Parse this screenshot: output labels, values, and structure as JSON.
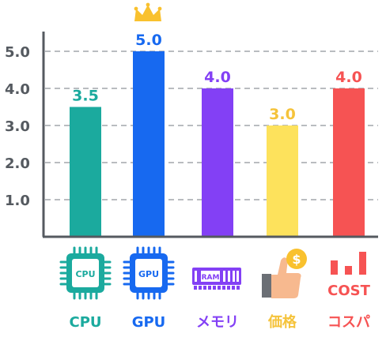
{
  "chart_data": {
    "type": "bar",
    "categories": [
      "CPU",
      "GPU",
      "メモリ",
      "価格",
      "コスパ"
    ],
    "values": [
      3.5,
      5.0,
      4.0,
      3.0,
      4.0
    ],
    "value_labels": [
      "3.5",
      "5.0",
      "4.0",
      "3.0",
      "4.0"
    ],
    "colors": [
      "#1baa9e",
      "#1769f0",
      "#8340f5",
      "#fde25c",
      "#f65353"
    ],
    "label_colors": [
      "#1baa9e",
      "#1769f0",
      "#8340f5",
      "#f5c33b",
      "#f65353"
    ],
    "yticks": [
      "1.0",
      "2.0",
      "3.0",
      "4.0",
      "5.0"
    ],
    "ylim": [
      0,
      5
    ],
    "grid": "dashed",
    "highlight": "crown-on-max",
    "title": "",
    "xlabel": "",
    "ylabel": ""
  },
  "icons": {
    "cpu": {
      "name": "cpu-chip-icon",
      "text": "CPU"
    },
    "gpu": {
      "name": "gpu-chip-icon",
      "text": "GPU"
    },
    "ram": {
      "name": "ram-module-icon",
      "text": "RAM"
    },
    "price": {
      "name": "thumbs-up-coin-icon",
      "text": "$"
    },
    "cost": {
      "name": "cost-bars-icon",
      "text": "COST"
    }
  }
}
